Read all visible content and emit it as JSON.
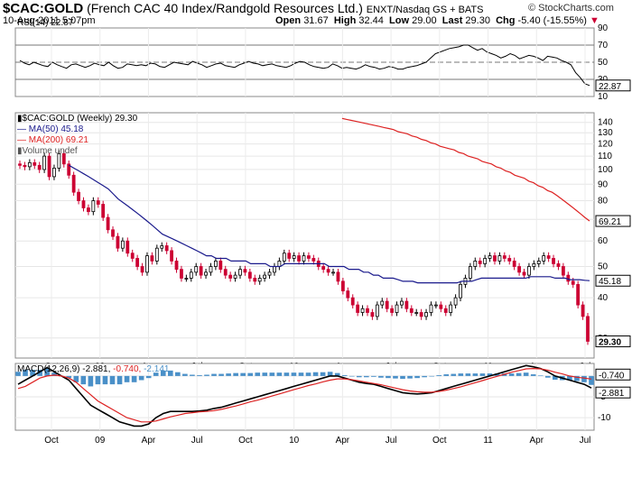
{
  "header": {
    "symbol": "$CAC:GOLD",
    "description": "(French CAC 40 Index/Randgold Resources Ltd.)",
    "exchange": "ENXT/Nasdaq GS + BATS",
    "datetime": "10-Aug-2011 5:07pm",
    "brand": "© StockCharts.com",
    "quote": {
      "open_label": "Open",
      "open": "31.67",
      "high_label": "High",
      "high": "32.44",
      "low_label": "Low",
      "low": "29.00",
      "last_label": "Last",
      "last": "29.30",
      "chg_label": "Chg",
      "chg": "-5.40 (-15.55%)"
    },
    "down_marker_color": "#cc0033"
  },
  "chart_data": [
    {
      "panel": "rsi",
      "type": "line",
      "label": "RSI(14) 22.87",
      "last_value_label": "22.87",
      "ylim": [
        10,
        90
      ],
      "yticks": [
        10,
        30,
        50,
        70,
        90
      ],
      "reference_lines": [
        30,
        50,
        70
      ],
      "color": "#000000",
      "series": [
        {
          "values": [
            52,
            49,
            47,
            50,
            48,
            46,
            45,
            50,
            47,
            45,
            43,
            47,
            48,
            46,
            44,
            46,
            49,
            47,
            46,
            50,
            46,
            43,
            44,
            48,
            47,
            46,
            47,
            46,
            49,
            48,
            45,
            44,
            47,
            50,
            49,
            48,
            47,
            51,
            49,
            47,
            44,
            46,
            48,
            49,
            46,
            45,
            44,
            47,
            49,
            51,
            49,
            48,
            46,
            47,
            48,
            46,
            45,
            44,
            46,
            49,
            51,
            50,
            47,
            45,
            44,
            43,
            44,
            48,
            46,
            43,
            44,
            43,
            42,
            44,
            47,
            45,
            44,
            42,
            43,
            45,
            44,
            42,
            42,
            44,
            45,
            46,
            48,
            50,
            55,
            60,
            62,
            64,
            66,
            67,
            68,
            70,
            70,
            67,
            64,
            66,
            62,
            60,
            58,
            55,
            57,
            60,
            58,
            54,
            56,
            58,
            57,
            55,
            52,
            57,
            56,
            55,
            52,
            50,
            47,
            38,
            32,
            25,
            22.87
          ]
        }
      ]
    },
    {
      "panel": "price",
      "type": "candlestick",
      "title": "$CAC:GOLD (Weekly) 29.30",
      "yscale": "log",
      "ylim": [
        26,
        150
      ],
      "yticks": [
        30,
        40,
        50,
        60,
        70,
        80,
        90,
        100,
        110,
        120,
        130,
        140
      ],
      "x_tick_labels": [
        "Oct",
        "09",
        "Apr",
        "Jul",
        "Oct",
        "10",
        "Apr",
        "Jul",
        "Oct",
        "11",
        "Apr",
        "Jul"
      ],
      "up_color": "#000000",
      "down_color": "#cc0033",
      "closes": [
        103,
        102,
        105,
        103,
        100,
        110,
        95,
        101,
        112,
        104,
        96,
        85,
        80,
        76,
        74,
        80,
        78,
        71,
        65,
        62,
        57,
        60,
        55,
        53,
        50,
        48,
        54,
        52,
        57,
        58,
        56,
        52,
        49,
        46,
        46,
        48,
        50,
        47,
        48,
        50,
        52,
        49,
        47,
        46,
        47,
        49,
        48,
        46,
        45,
        46,
        47,
        48,
        50,
        52,
        55,
        53,
        54,
        52,
        54,
        53,
        52,
        50,
        49,
        48,
        48,
        45,
        42,
        40,
        38,
        36,
        37,
        36,
        35,
        38,
        39,
        37,
        36,
        38,
        39,
        37,
        36,
        36,
        35,
        36,
        38,
        38,
        37,
        36,
        38,
        40,
        44,
        46,
        50,
        52,
        51,
        53,
        54,
        52,
        54,
        53,
        52,
        50,
        48,
        47,
        50,
        51,
        52,
        54,
        53,
        51,
        50,
        47,
        45,
        44,
        38,
        35,
        29.3
      ],
      "series": [
        {
          "name": "MA(50) 45.18",
          "color": "#1a1a8c",
          "last_value_label": "45.18",
          "values": [
            null,
            null,
            null,
            null,
            null,
            null,
            null,
            null,
            null,
            null,
            103,
            101,
            99,
            97,
            95,
            93,
            91,
            89,
            87,
            84,
            81,
            79,
            77,
            75,
            73,
            71,
            69,
            67,
            65,
            63,
            62,
            61,
            60,
            59,
            58,
            57,
            56,
            55,
            54,
            54,
            53,
            53,
            53,
            52,
            52,
            52,
            52,
            51,
            51,
            51,
            51,
            50,
            50,
            50,
            51,
            51,
            51,
            51,
            51,
            51,
            51,
            51,
            51,
            50,
            50,
            50,
            50,
            49,
            49,
            49,
            48,
            48,
            47,
            47,
            46,
            46,
            46,
            45.5,
            45,
            45,
            45,
            44.5,
            44.5,
            44.5,
            44.5,
            44.5,
            44.5,
            44.5,
            44.5,
            44.5,
            45,
            45,
            45,
            45.5,
            46,
            46,
            46,
            46,
            46,
            46,
            46,
            46,
            46,
            46,
            46.5,
            46.5,
            46.5,
            46.5,
            46.5,
            46,
            46,
            46,
            45.5,
            45.5,
            45.5,
            45.3,
            45.18
          ]
        },
        {
          "name": "MA(200) 69.21",
          "color": "#dd2222",
          "last_value_label": "69.21",
          "values": [
            null,
            null,
            null,
            null,
            null,
            null,
            null,
            null,
            null,
            null,
            null,
            null,
            null,
            null,
            null,
            null,
            null,
            null,
            null,
            null,
            null,
            null,
            null,
            null,
            null,
            null,
            null,
            null,
            null,
            null,
            null,
            null,
            null,
            null,
            null,
            null,
            null,
            null,
            null,
            null,
            null,
            null,
            null,
            null,
            null,
            null,
            null,
            null,
            null,
            null,
            null,
            null,
            null,
            null,
            null,
            null,
            null,
            null,
            null,
            null,
            null,
            null,
            null,
            null,
            null,
            null,
            null,
            null,
            null,
            144,
            143,
            142,
            141,
            140,
            139,
            138,
            137,
            136,
            135,
            134,
            133,
            131,
            130,
            129,
            127,
            126,
            124,
            123,
            121,
            120,
            118,
            117,
            116,
            115,
            113,
            112,
            110,
            109,
            108,
            106,
            105,
            104,
            102,
            101,
            99,
            98,
            96,
            95,
            94,
            92,
            91,
            89,
            88,
            86,
            85,
            83,
            81,
            79,
            77,
            75,
            73,
            71,
            69.21
          ]
        },
        {
          "name": "Volume undef",
          "color": "#555555"
        }
      ]
    },
    {
      "panel": "macd",
      "type": "line",
      "label": "MACD(12,26,9) -2.881, -0.740, -2.141",
      "label_parts": {
        "name": "MACD(12,26,9)",
        "macd": "-2.881",
        "signal": "-0.740",
        "hist": "-2.141"
      },
      "ylim": [
        -13,
        3
      ],
      "yticks": [
        -10,
        -5,
        0
      ],
      "last_value_labels": [
        "-0.740",
        "-2.881"
      ],
      "series": [
        {
          "name": "MACD",
          "color": "#000000",
          "values": [
            -2,
            -1,
            0,
            1,
            2,
            1,
            0,
            -1,
            -3,
            -5,
            -7,
            -8,
            -9,
            -10,
            -11,
            -11.5,
            -12,
            -12,
            -11.5,
            -10,
            -9,
            -8.5,
            -8.5,
            -8.5,
            -8.5,
            -8.4,
            -8.2,
            -7.8,
            -7.5,
            -7,
            -6.5,
            -6,
            -5.5,
            -5,
            -4.5,
            -4,
            -3.5,
            -3,
            -2.5,
            -2,
            -1.5,
            -1,
            -0.5,
            0,
            0,
            -0.5,
            -1,
            -1.5,
            -1.8,
            -2,
            -2.5,
            -3,
            -3.5,
            -4,
            -4.2,
            -4.3,
            -4.2,
            -4,
            -3.5,
            -3,
            -2.5,
            -2,
            -1.5,
            -1,
            -0.5,
            0,
            0.5,
            1,
            1.5,
            2,
            2.5,
            2.2,
            1.8,
            1,
            0,
            -0.5,
            -1,
            -1.5,
            -2,
            -2.881
          ]
        },
        {
          "name": "Signal",
          "color": "#dd2222",
          "values": [
            -3,
            -2.5,
            -1.5,
            -0.5,
            0,
            0.2,
            0,
            -0.5,
            -1.5,
            -3,
            -4.5,
            -6,
            -7,
            -8,
            -9,
            -10,
            -10.5,
            -11,
            -11,
            -10.8,
            -10.3,
            -9.8,
            -9.4,
            -9,
            -8.8,
            -8.6,
            -8.5,
            -8.3,
            -8,
            -7.6,
            -7.2,
            -6.7,
            -6.2,
            -5.8,
            -5.3,
            -4.8,
            -4.3,
            -3.8,
            -3.3,
            -2.8,
            -2.3,
            -1.9,
            -1.4,
            -1,
            -0.7,
            -0.7,
            -0.9,
            -1.2,
            -1.5,
            -1.8,
            -2.1,
            -2.5,
            -2.9,
            -3.3,
            -3.6,
            -3.8,
            -3.9,
            -3.9,
            -3.7,
            -3.4,
            -3,
            -2.6,
            -2.1,
            -1.6,
            -1.1,
            -0.6,
            -0.1,
            0.4,
            0.9,
            1.3,
            1.7,
            1.8,
            1.7,
            1.4,
            0.9,
            0.5,
            0,
            -0.3,
            -0.5,
            -0.74
          ]
        },
        {
          "name": "Histogram",
          "color": "#4a90c8"
        }
      ]
    }
  ]
}
